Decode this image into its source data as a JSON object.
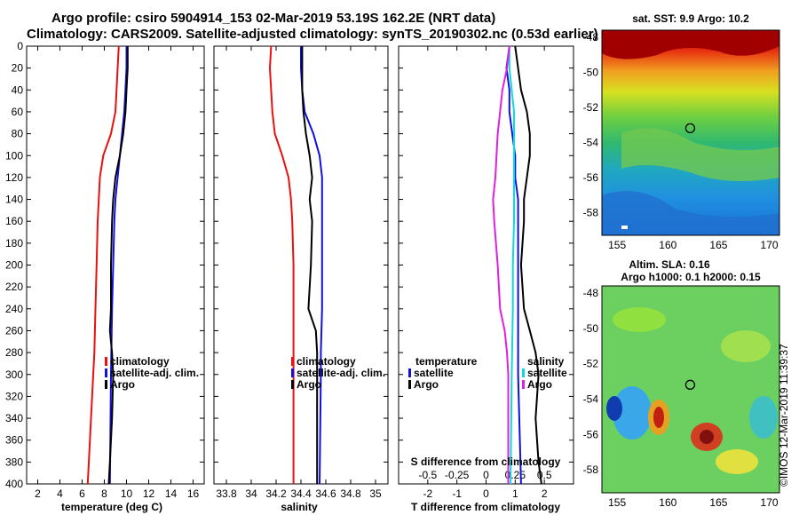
{
  "header": {
    "line1": "Argo profile: csiro 5904914_153 02-Mar-2019 53.19S 162.2E (NRT data)",
    "line2": "Climatology: CARS2009. Satellite-adjusted climatology: synTS_20190302.nc (0.53d earlier)"
  },
  "watermark": "©IMOS 12-Mar-2019 11:39:37",
  "colors": {
    "climatology": "#e81010",
    "satellite": "#1010e0",
    "argo": "#000000",
    "magenta": "#e020e0",
    "cyan": "#10d8e0"
  },
  "chart_data": [
    {
      "type": "line",
      "id": "temperature",
      "xlabel": "temperature (deg C)",
      "ylabel": "",
      "xlim": [
        1,
        17
      ],
      "ylim": [
        0,
        400
      ],
      "xticks": [
        2,
        4,
        6,
        8,
        10,
        12,
        14,
        16
      ],
      "yticks": [
        0,
        20,
        40,
        60,
        80,
        100,
        120,
        140,
        160,
        180,
        200,
        220,
        240,
        260,
        280,
        300,
        320,
        340,
        360,
        380,
        400
      ],
      "legend": [
        "climatology",
        "satellite-adj. clim.",
        "Argo"
      ],
      "series": [
        {
          "name": "climatology",
          "x": [
            9.3,
            9.2,
            9.1,
            9.0,
            8.6,
            7.9,
            7.6,
            7.5,
            7.4,
            7.3,
            7.2,
            7.1,
            7.0,
            6.9,
            6.8,
            6.7,
            6.5
          ],
          "y": [
            0,
            20,
            40,
            60,
            80,
            100,
            120,
            140,
            160,
            200,
            240,
            280,
            300,
            320,
            340,
            360,
            400
          ]
        },
        {
          "name": "satellite-adj. clim.",
          "x": [
            10.0,
            10.0,
            9.9,
            9.8,
            9.6,
            9.4,
            9.2,
            9.0,
            8.9,
            8.8,
            8.7,
            8.6,
            8.5
          ],
          "y": [
            0,
            20,
            40,
            60,
            80,
            100,
            120,
            140,
            160,
            200,
            240,
            300,
            400
          ]
        },
        {
          "name": "Argo",
          "x": [
            10.1,
            10.1,
            10.0,
            9.9,
            9.7,
            9.4,
            9.0,
            8.8,
            8.7,
            8.6,
            8.6,
            8.5,
            8.7,
            8.8,
            8.7,
            8.5,
            8.4
          ],
          "y": [
            0,
            20,
            40,
            60,
            80,
            100,
            120,
            140,
            160,
            200,
            240,
            260,
            280,
            300,
            340,
            380,
            400
          ]
        }
      ]
    },
    {
      "type": "line",
      "id": "salinity",
      "xlabel": "salinity",
      "xlim": [
        33.7,
        35.1
      ],
      "ylim": [
        0,
        400
      ],
      "xticks": [
        33.8,
        34,
        34.2,
        34.4,
        34.6,
        34.8,
        35
      ],
      "xtick_labels": [
        "33.8",
        "34",
        "34.2",
        "34.4",
        "34.6",
        "34.8",
        "35"
      ],
      "legend": [
        "climatology",
        "satellite-adj. clim.",
        "Argo"
      ],
      "series": [
        {
          "name": "climatology",
          "x": [
            34.16,
            34.15,
            34.16,
            34.17,
            34.19,
            34.25,
            34.3,
            34.32,
            34.33,
            34.34,
            34.34,
            34.34,
            34.34
          ],
          "y": [
            0,
            20,
            40,
            60,
            80,
            100,
            120,
            140,
            160,
            200,
            240,
            300,
            400
          ]
        },
        {
          "name": "satellite-adj. clim.",
          "x": [
            34.4,
            34.4,
            34.41,
            34.43,
            34.5,
            34.55,
            34.57,
            34.57,
            34.57,
            34.57,
            34.57,
            34.56,
            34.56,
            34.55
          ],
          "y": [
            0,
            20,
            40,
            60,
            80,
            100,
            120,
            140,
            160,
            200,
            240,
            280,
            300,
            400
          ]
        },
        {
          "name": "Argo",
          "x": [
            34.41,
            34.41,
            34.41,
            34.42,
            34.44,
            34.47,
            34.49,
            34.47,
            34.49,
            34.48,
            34.46,
            34.52,
            34.53,
            34.53,
            34.53,
            34.53
          ],
          "y": [
            0,
            20,
            40,
            60,
            80,
            100,
            120,
            140,
            160,
            200,
            240,
            260,
            280,
            300,
            340,
            400
          ]
        }
      ]
    },
    {
      "type": "line",
      "id": "difference",
      "xlabel": "T difference from climatology",
      "xlabel2": "S difference from climatology",
      "xlim": [
        -3,
        3
      ],
      "ylim": [
        0,
        400
      ],
      "xticks": [
        -2,
        -1,
        0,
        1,
        2
      ],
      "xticks2": [
        -0.5,
        -0.25,
        0,
        0.25,
        0.5
      ],
      "xtick2_labels": [
        "-0.5",
        "-0.25",
        "0",
        "0.25",
        "0.5"
      ],
      "legend_left_title": "temperature",
      "legend_right_title": "salinity",
      "legend": [
        "satellite",
        "Argo"
      ],
      "series": [
        {
          "name": "temperature satellite",
          "x": [
            0.8,
            0.7,
            0.8,
            0.8,
            0.9,
            1.0,
            1.0,
            1.1,
            1.1,
            1.1,
            1.1,
            1.1,
            1.2
          ],
          "y": [
            0,
            20,
            40,
            60,
            80,
            100,
            120,
            140,
            160,
            200,
            240,
            300,
            400
          ]
        },
        {
          "name": "temperature Argo",
          "x": [
            1.0,
            1.1,
            1.2,
            1.4,
            1.5,
            1.5,
            1.4,
            1.3,
            1.3,
            1.2,
            1.3,
            1.5,
            1.7,
            1.8,
            1.7,
            1.8,
            1.9
          ],
          "y": [
            0,
            20,
            40,
            60,
            80,
            100,
            120,
            140,
            160,
            200,
            240,
            260,
            280,
            300,
            340,
            380,
            400
          ]
        },
        {
          "name": "salinity satellite",
          "x": [
            0.2,
            0.2,
            0.22,
            0.24,
            0.24,
            0.24,
            0.24,
            0.24,
            0.24,
            0.23,
            0.23,
            0.22,
            0.21
          ],
          "y": [
            0,
            20,
            40,
            60,
            80,
            100,
            120,
            140,
            160,
            200,
            240,
            300,
            400
          ]
        },
        {
          "name": "salinity Argo",
          "x": [
            0.2,
            0.18,
            0.14,
            0.12,
            0.1,
            0.09,
            0.08,
            0.06,
            0.07,
            0.1,
            0.12,
            0.16,
            0.18,
            0.19,
            0.19,
            0.19
          ],
          "y": [
            0,
            20,
            40,
            60,
            80,
            100,
            120,
            140,
            160,
            200,
            240,
            260,
            280,
            300,
            340,
            400
          ]
        }
      ]
    },
    {
      "type": "heatmap",
      "id": "sst-map",
      "title": "sat. SST: 9.9 Argo: 10.2",
      "xticks": [
        155,
        160,
        165,
        170
      ],
      "yticks": [
        "-48",
        "-50",
        "-52",
        "-54",
        "-56",
        "-58"
      ],
      "xlim": [
        153.5,
        171
      ],
      "ylim": [
        -59.3,
        -47.6
      ],
      "argo_position": {
        "lon": 162.2,
        "lat": -53.19
      }
    },
    {
      "type": "heatmap",
      "id": "sla-map",
      "title": "Altim. SLA: 0.16",
      "subtitle": "Argo h1000: 0.1 h2000: 0.15",
      "xticks": [
        155,
        160,
        165,
        170
      ],
      "yticks": [
        "-48",
        "-50",
        "-52",
        "-54",
        "-56",
        "-58"
      ],
      "xlim": [
        153.5,
        171
      ],
      "ylim": [
        -59.3,
        -47.6
      ],
      "argo_position": {
        "lon": 162.2,
        "lat": -53.19
      }
    }
  ]
}
